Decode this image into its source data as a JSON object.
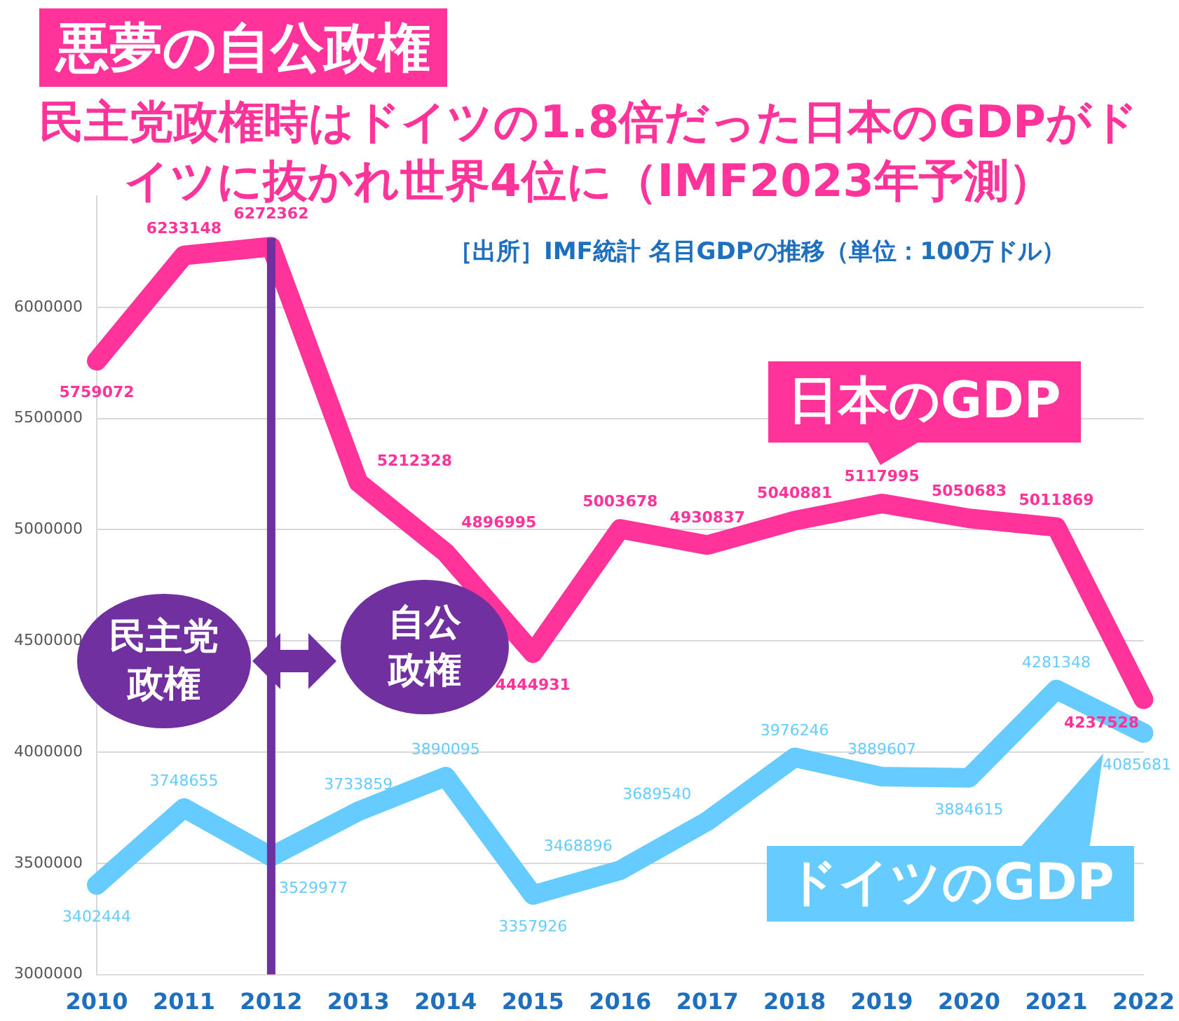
{
  "chart_data": {
    "type": "line",
    "title": "悪夢の自公政権",
    "subtitle": "民主党政権時はドイツの1.8倍だった日本のGDPがドイツに抜かれ世界4位に（IMF2023年予測）",
    "annotations": [
      "［出所］IMF統計 名目GDPの推移（単位：100万ドル）",
      "民主党政権",
      "自公政権"
    ],
    "categories": [
      "2010",
      "2011",
      "2012",
      "2013",
      "2014",
      "2015",
      "2016",
      "2017",
      "2018",
      "2019",
      "2020",
      "2021",
      "2022"
    ],
    "series": [
      {
        "name": "日本のGDP",
        "color": "#ff3399",
        "values": [
          5759072,
          6233148,
          6272362,
          5212328,
          4896995,
          4444931,
          5003678,
          4930837,
          5040881,
          5117995,
          5050683,
          5011869,
          4237528
        ]
      },
      {
        "name": "ドイツのGDP",
        "color": "#66ccff",
        "values": [
          3402444,
          3748655,
          3529977,
          3733859,
          3890095,
          3357926,
          3468896,
          3689540,
          3976246,
          3889607,
          3884615,
          4281348,
          4085681
        ]
      }
    ],
    "ylim": [
      3000000,
      6500000
    ],
    "yticks": [
      3000000,
      3500000,
      4000000,
      4500000,
      5000000,
      5500000,
      6000000
    ],
    "grid": "y",
    "legend": "bottom right",
    "marker": "none",
    "data_labels": true,
    "ref_lines": [
      {
        "axis": "x",
        "value": "2012",
        "color": "#7030a0"
      }
    ]
  }
}
